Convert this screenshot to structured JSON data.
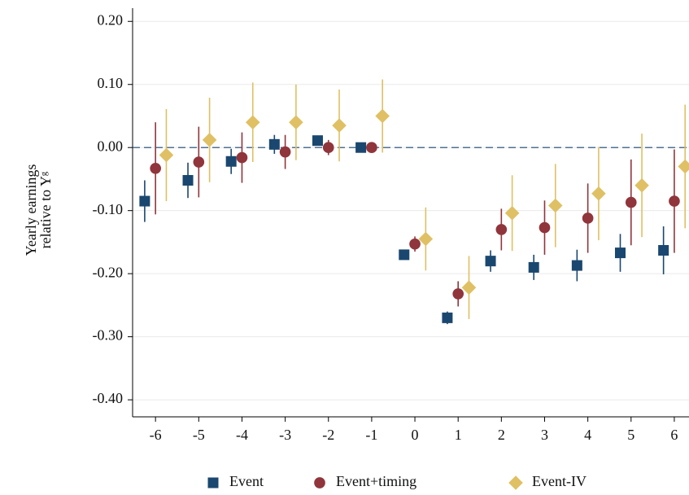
{
  "chart_data": {
    "type": "errorbar",
    "y_label": [
      "Yearly earnings",
      "relative to Yᵍ"
    ],
    "xlim": [
      -6.53,
      6.34
    ],
    "ylim": [
      -0.427,
      0.221
    ],
    "xticks": [
      -6,
      -5,
      -4,
      -3,
      -2,
      -1,
      0,
      1,
      2,
      3,
      4,
      5,
      6
    ],
    "yticks": [
      {
        "value": -0.4,
        "label": "-0.40"
      },
      {
        "value": -0.3,
        "label": "-0.30"
      },
      {
        "value": -0.2,
        "label": "-0.20"
      },
      {
        "value": -0.1,
        "label": "-0.10"
      },
      {
        "value": 0,
        "label": "0.00"
      },
      {
        "value": 0.1,
        "label": "0.10"
      },
      {
        "value": 0.2,
        "label": "0.20"
      }
    ],
    "grid": true,
    "ref_line": 0,
    "legend": "bottom",
    "series": [
      {
        "name": "Event",
        "color": "#1a476f",
        "marker": "square",
        "x": [
          -6.25,
          -5.25,
          -4.25,
          -3.25,
          -2.25,
          -1.25,
          -0.25,
          0.75,
          1.75,
          2.75,
          3.75,
          4.75,
          5.75
        ],
        "values": [
          -0.085,
          -0.052,
          -0.022,
          0.005,
          0.011,
          0,
          -0.17,
          -0.27,
          -0.18,
          -0.19,
          -0.187,
          -0.167,
          -0.163
        ],
        "errors": [
          0.033,
          0.028,
          0.02,
          0.015,
          0.008,
          0,
          0.005,
          0.01,
          0.017,
          0.02,
          0.025,
          0.03,
          0.038
        ]
      },
      {
        "name": "Event+timing",
        "color": "#90353b",
        "marker": "circle",
        "x": [
          -6,
          -5,
          -4,
          -3,
          -2,
          -1,
          0,
          1,
          2,
          3,
          4,
          5,
          6
        ],
        "values": [
          -0.033,
          -0.023,
          -0.016,
          -0.007,
          0,
          0,
          -0.153,
          -0.232,
          -0.13,
          -0.127,
          -0.112,
          -0.087,
          -0.085
        ],
        "errors": [
          0.073,
          0.056,
          0.04,
          0.027,
          0.012,
          0,
          0.012,
          0.02,
          0.033,
          0.043,
          0.055,
          0.068,
          0.082
        ]
      },
      {
        "name": "Event-IV",
        "color": "#dfc064",
        "marker": "diamond",
        "x": [
          -5.75,
          -4.75,
          -3.75,
          -2.75,
          -1.75,
          -0.75,
          0.25,
          1.25,
          2.25,
          3.25,
          4.25,
          5.25,
          6.25
        ],
        "values": [
          -0.012,
          0.012,
          0.04,
          0.04,
          0.035,
          0.05,
          -0.145,
          -0.222,
          -0.104,
          -0.092,
          -0.073,
          -0.06,
          -0.03
        ],
        "errors": [
          0.073,
          0.067,
          0.063,
          0.06,
          0.057,
          0.058,
          0.05,
          0.05,
          0.06,
          0.066,
          0.074,
          0.082,
          0.098
        ]
      }
    ]
  }
}
